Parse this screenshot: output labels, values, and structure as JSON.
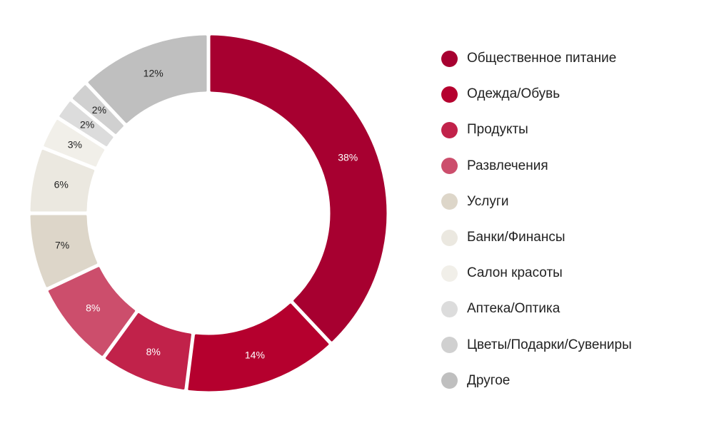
{
  "chart_data": {
    "type": "pie",
    "variant": "donut",
    "start_angle_deg": 0,
    "direction": "clockwise",
    "legend_position": "right",
    "slices": [
      {
        "name": "Общественное питание",
        "value": 38,
        "label": "38%",
        "color": "#a70030",
        "label_color": "#ffffff"
      },
      {
        "name": "Одежда/Обувь",
        "value": 14,
        "label": "14%",
        "color": "#b5002e",
        "label_color": "#ffffff"
      },
      {
        "name": "Продукты",
        "value": 8,
        "label": "8%",
        "color": "#c1224a",
        "label_color": "#ffffff"
      },
      {
        "name": "Развлечения",
        "value": 8,
        "label": "8%",
        "color": "#cc4e6c",
        "label_color": "#ffffff"
      },
      {
        "name": "Услуги",
        "value": 7,
        "label": "7%",
        "color": "#ddd6c9",
        "label_color": "#222222"
      },
      {
        "name": "Банки/Финансы",
        "value": 6,
        "label": "6%",
        "color": "#ebe8e0",
        "label_color": "#222222"
      },
      {
        "name": "Салон красоты",
        "value": 3,
        "label": "3%",
        "color": "#f1efe9",
        "label_color": "#222222"
      },
      {
        "name": "Аптека/Оптика",
        "value": 2,
        "label": "2%",
        "color": "#dcdcdc",
        "label_color": "#222222"
      },
      {
        "name": "Цветы/Подарки/Сувениры",
        "value": 2,
        "label": "2%",
        "color": "#d0d0d0",
        "label_color": "#222222"
      },
      {
        "name": "Другое",
        "value": 12,
        "label": "12%",
        "color": "#bfbfbf",
        "label_color": "#222222"
      }
    ]
  }
}
